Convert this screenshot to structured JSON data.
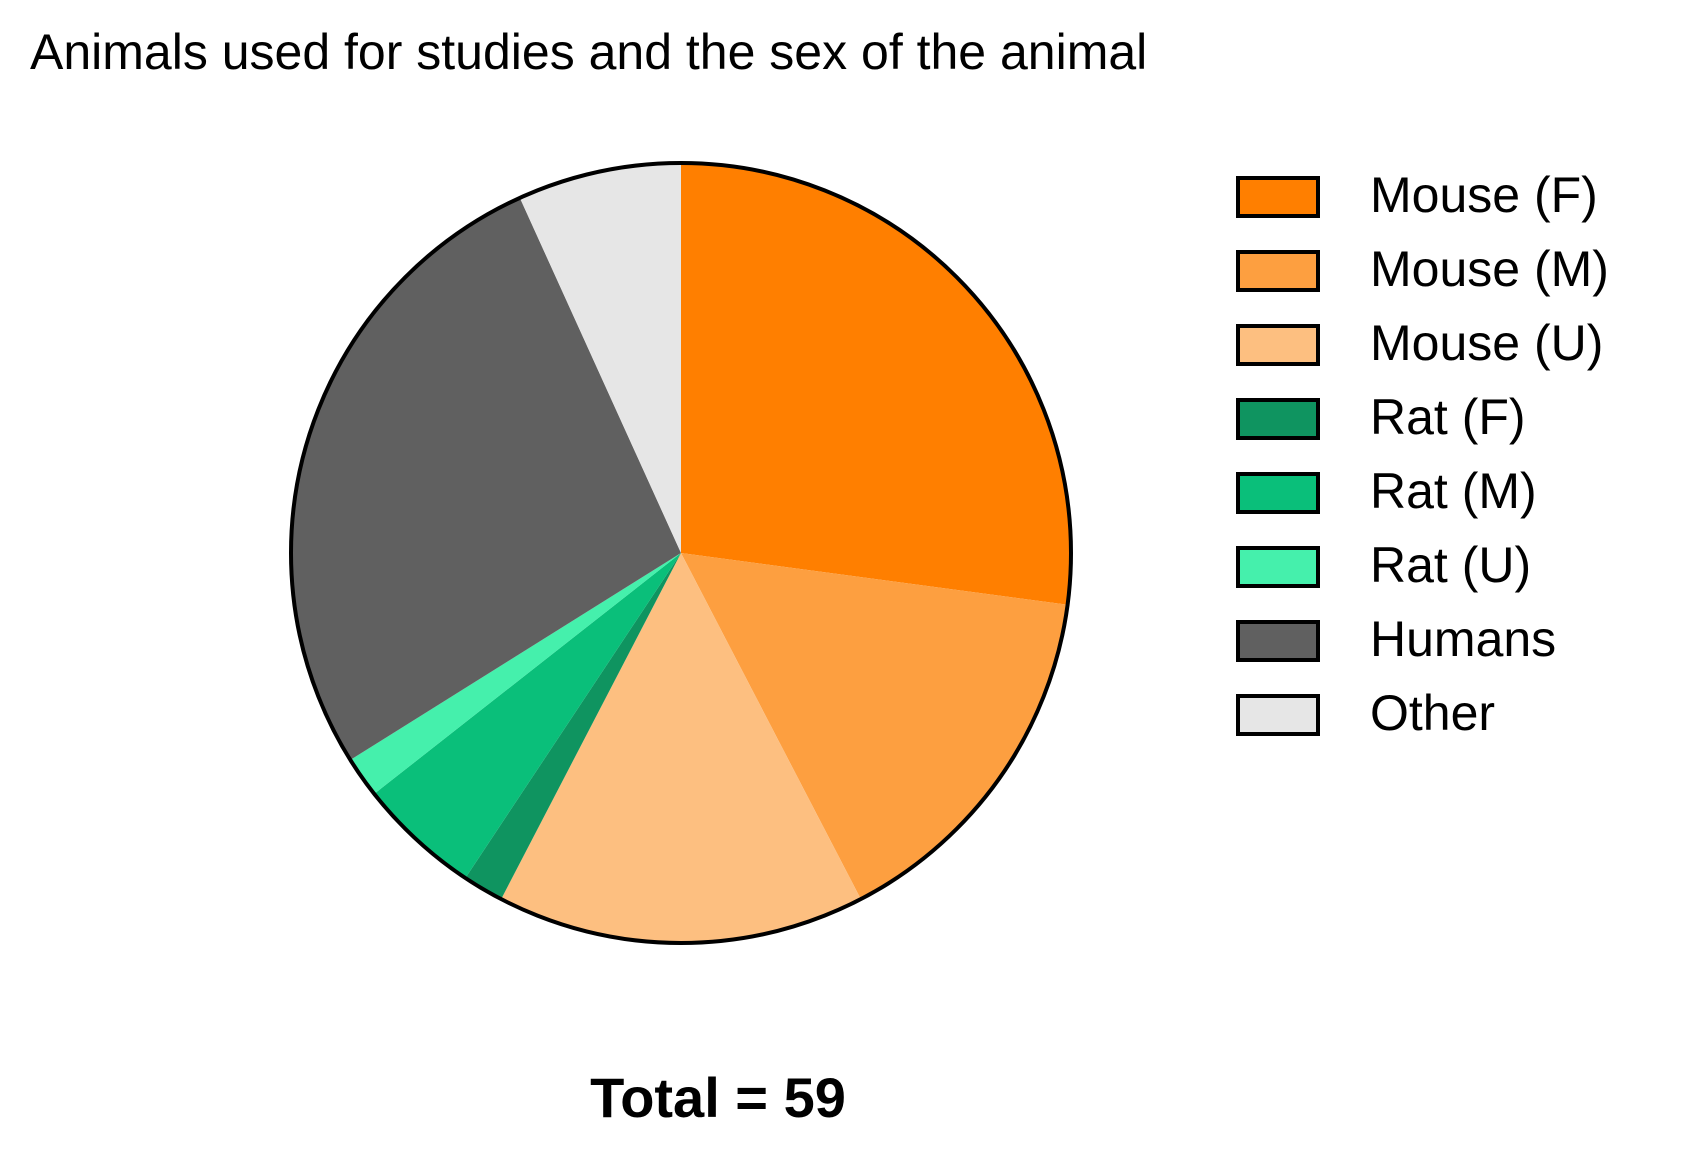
{
  "chart_data": {
    "type": "pie",
    "title": "Animals used for studies and the sex of the animal",
    "categories": [
      "Mouse (F)",
      "Mouse (M)",
      "Mouse (U)",
      "Rat (F)",
      "Rat (M)",
      "Rat (U)",
      "Humans",
      "Other"
    ],
    "values": [
      16,
      9,
      9,
      1,
      3,
      1,
      16,
      4
    ],
    "colors": [
      "#ff7f00",
      "#fd9f40",
      "#fdbf80",
      "#0f9460",
      "#0abf7a",
      "#45f0ac",
      "#606060",
      "#e6e6e6"
    ],
    "legend": "right",
    "annotation": "Total = 59"
  }
}
